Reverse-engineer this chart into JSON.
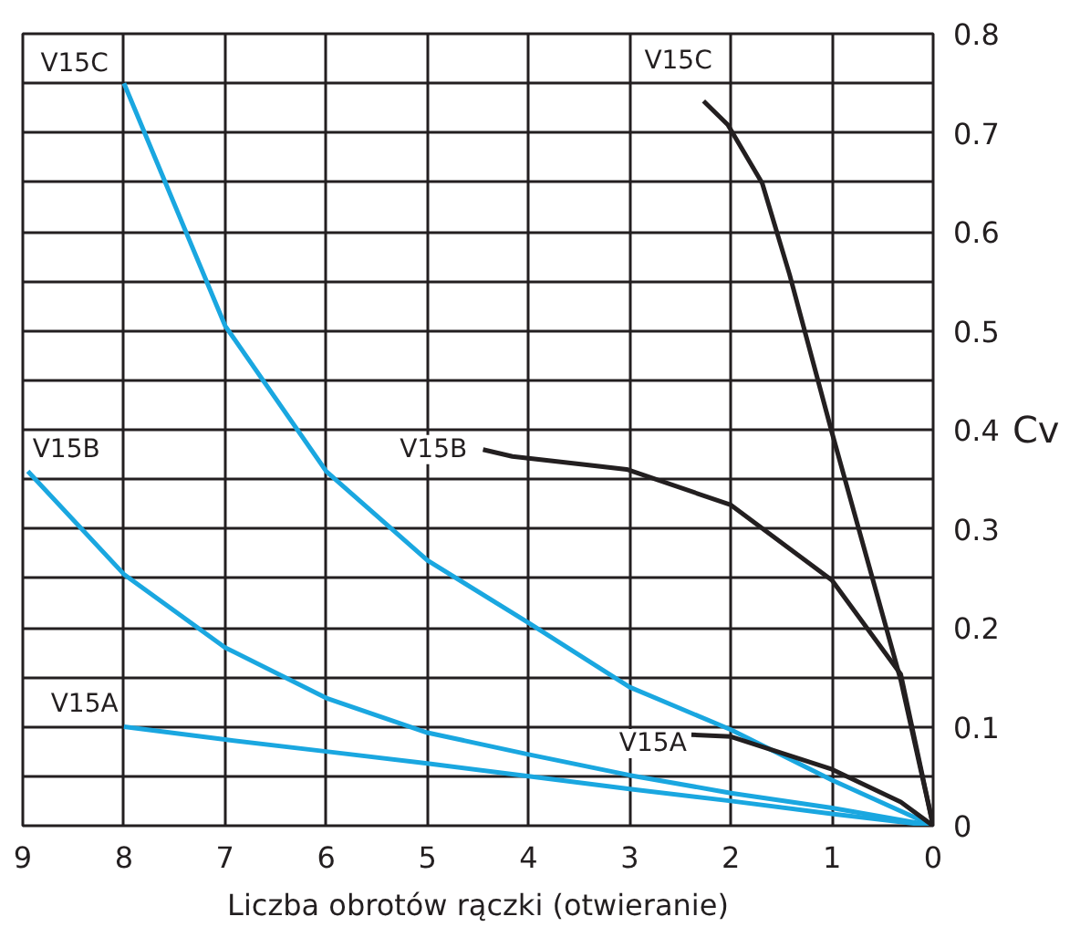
{
  "chart_data": {
    "type": "line",
    "xlabel": "Liczba obrotów rączki (otwieranie)",
    "ylabel": "Cv",
    "xlim": [
      9,
      0
    ],
    "ylim": [
      0,
      0.8
    ],
    "xticks": [
      9,
      8,
      7,
      6,
      5,
      4,
      3,
      2,
      1,
      0
    ],
    "yticks": [
      0,
      {
        "value": 0.05,
        "label": null
      },
      0.1,
      {
        "value": 0.15,
        "label": null
      },
      0.2,
      {
        "value": 0.25,
        "label": null
      },
      0.3,
      {
        "value": 0.35,
        "label": null
      },
      0.4,
      {
        "value": 0.45,
        "label": null
      },
      0.5,
      {
        "value": 0.55,
        "label": null
      },
      0.6,
      {
        "value": 0.65,
        "label": null
      },
      0.7,
      {
        "value": 0.75,
        "label": null
      },
      0.8
    ],
    "grid": true,
    "marker": "none",
    "line_style": "solid",
    "series": [
      {
        "color": "#1aa7e0",
        "x": [
          8,
          7,
          6,
          5,
          4,
          3,
          2,
          1,
          0
        ],
        "values": [
          0.75,
          0.505,
          0.358,
          0.268,
          0.205,
          0.14,
          0.097,
          0.046,
          0
        ]
      },
      {
        "color": "#1aa7e0",
        "x": [
          8.95,
          8,
          7,
          6,
          5,
          4,
          3,
          2,
          1,
          0
        ],
        "values": [
          0.358,
          0.254,
          0.18,
          0.129,
          0.094,
          0.072,
          0.051,
          0.033,
          0.018,
          0
        ]
      },
      {
        "color": "#1aa7e0",
        "x": [
          8,
          7,
          6,
          5,
          4,
          3,
          2,
          1,
          0
        ],
        "values": [
          0.1,
          0.087,
          0.075,
          0.063,
          0.05,
          0.037,
          0.025,
          0.012,
          0
        ]
      },
      {
        "color": "#231f20",
        "x": [
          2.27,
          2.03,
          1.69,
          1.42,
          1,
          0.32,
          0
        ],
        "values": [
          0.732,
          0.708,
          0.649,
          0.557,
          0.397,
          0.147,
          0
        ]
      },
      {
        "color": "#231f20",
        "x": [
          4.45,
          4.16,
          3.03,
          2,
          1,
          0.32,
          0
        ],
        "values": [
          0.38,
          0.373,
          0.36,
          0.324,
          0.248,
          0.153,
          0
        ]
      },
      {
        "color": "#231f20",
        "x": [
          2.39,
          2,
          1,
          0.32,
          0
        ],
        "values": [
          0.092,
          0.09,
          0.057,
          0.024,
          0
        ]
      }
    ],
    "annotations": [
      {
        "text": "V15C",
        "x": 8.49,
        "y": 0.77
      },
      {
        "text": "V15C",
        "x": 2.52,
        "y": 0.772
      },
      {
        "text": "V15B",
        "x": 8.57,
        "y": 0.38
      },
      {
        "text": "V15B",
        "x": 4.94,
        "y": 0.38
      },
      {
        "text": "V15A",
        "x": 8.39,
        "y": 0.123
      },
      {
        "text": "V15A",
        "x": 2.77,
        "y": 0.083
      }
    ]
  }
}
